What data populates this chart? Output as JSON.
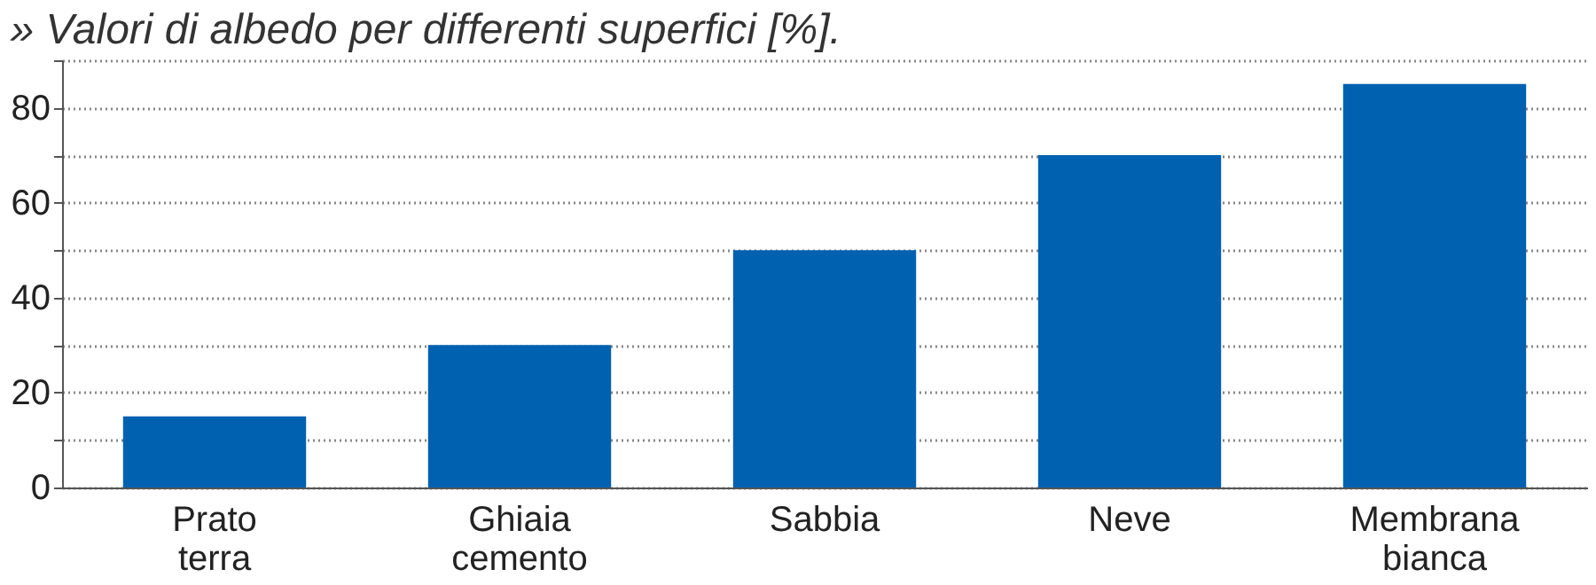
{
  "chart_data": {
    "type": "bar",
    "title": "» Valori di albedo per differenti superfici [%].",
    "categories": [
      "Prato\nterra",
      "Ghiaia\ncemento",
      "Sabbia",
      "Neve",
      "Membrana\nbianca"
    ],
    "values": [
      15,
      30,
      50,
      70,
      85
    ],
    "color": "#0061b0",
    "ylim": [
      0,
      90
    ],
    "yticks": [
      0,
      {
        "value": 10,
        "label": null
      },
      20,
      {
        "value": 30,
        "label": null
      },
      40,
      {
        "value": 50,
        "label": null
      },
      60,
      {
        "value": 70,
        "label": null
      },
      80,
      {
        "value": 90,
        "label": null
      }
    ],
    "grid": "y"
  }
}
